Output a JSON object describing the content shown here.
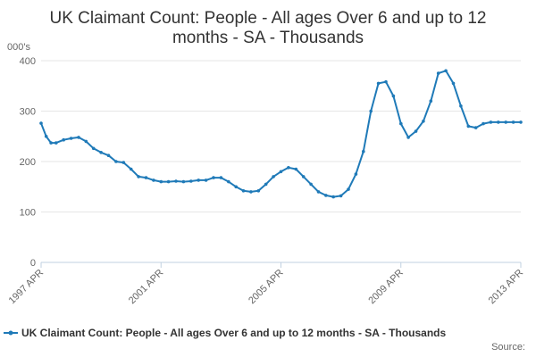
{
  "chart_data": {
    "type": "line",
    "title_line1": "UK Claimant Count: People - All ages Over 6 and up to 12",
    "title_line2": "months - SA - Thousands",
    "y_unit": "000's",
    "ylim": [
      0,
      400
    ],
    "y_ticks": [
      "0",
      "100",
      "200",
      "300",
      "400"
    ],
    "xlim": [
      1997.25,
      2013.25
    ],
    "x_ticks": [
      {
        "label": "1997 APR",
        "x": 1997.25
      },
      {
        "label": "2001 APR",
        "x": 2001.25
      },
      {
        "label": "2005 APR",
        "x": 2005.25
      },
      {
        "label": "2009 APR",
        "x": 2009.25
      },
      {
        "label": "2013 APR",
        "x": 2013.25
      }
    ],
    "grid": true,
    "legend_position": "bottom",
    "series": [
      {
        "name": "UK Claimant Count: People - All ages Over 6 and up to 12 months - SA - Thousands",
        "color": "#1f7ab8",
        "x": [
          1997.25,
          1997.42,
          1997.58,
          1997.75,
          1998.0,
          1998.25,
          1998.5,
          1998.75,
          1999.0,
          1999.25,
          1999.5,
          1999.75,
          2000.0,
          2000.25,
          2000.5,
          2000.75,
          2001.0,
          2001.25,
          2001.5,
          2001.75,
          2002.0,
          2002.25,
          2002.5,
          2002.75,
          2003.0,
          2003.25,
          2003.5,
          2003.75,
          2004.0,
          2004.25,
          2004.5,
          2004.75,
          2005.0,
          2005.25,
          2005.5,
          2005.75,
          2006.0,
          2006.25,
          2006.5,
          2006.75,
          2007.0,
          2007.25,
          2007.5,
          2007.75,
          2008.0,
          2008.25,
          2008.5,
          2008.75,
          2009.0,
          2009.25,
          2009.5,
          2009.75,
          2010.0,
          2010.25,
          2010.5,
          2010.75,
          2011.0,
          2011.25,
          2011.5,
          2011.75,
          2012.0,
          2012.25,
          2012.5,
          2012.75,
          2013.0,
          2013.25
        ],
        "values": [
          276,
          250,
          237,
          237,
          243,
          246,
          248,
          240,
          226,
          218,
          212,
          200,
          198,
          185,
          170,
          168,
          163,
          160,
          160,
          161,
          160,
          161,
          163,
          163,
          168,
          168,
          160,
          150,
          142,
          140,
          142,
          155,
          170,
          180,
          188,
          185,
          170,
          155,
          140,
          133,
          130,
          132,
          145,
          175,
          220,
          300,
          355,
          358,
          330,
          275,
          248,
          260,
          280,
          320,
          375,
          380,
          355,
          310,
          270,
          267,
          275,
          278,
          278,
          278,
          278,
          278
        ]
      }
    ],
    "source_label": "Source:"
  }
}
